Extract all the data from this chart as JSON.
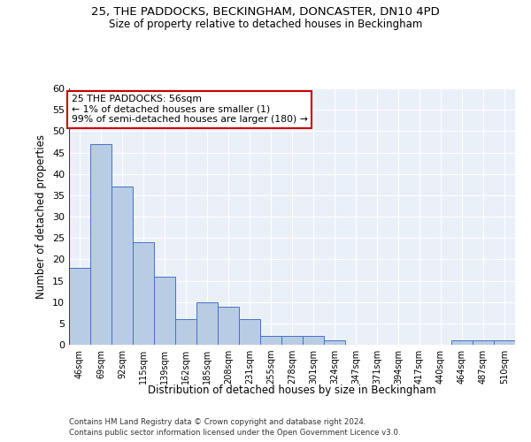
{
  "title_line1": "25, THE PADDOCKS, BECKINGHAM, DONCASTER, DN10 4PD",
  "title_line2": "Size of property relative to detached houses in Beckingham",
  "xlabel": "Distribution of detached houses by size in Beckingham",
  "ylabel": "Number of detached properties",
  "categories": [
    "46sqm",
    "69sqm",
    "92sqm",
    "115sqm",
    "139sqm",
    "162sqm",
    "185sqm",
    "208sqm",
    "231sqm",
    "255sqm",
    "278sqm",
    "301sqm",
    "324sqm",
    "347sqm",
    "371sqm",
    "394sqm",
    "417sqm",
    "440sqm",
    "464sqm",
    "487sqm",
    "510sqm"
  ],
  "values": [
    18,
    47,
    37,
    24,
    16,
    6,
    10,
    9,
    6,
    2,
    2,
    2,
    1,
    0,
    0,
    0,
    0,
    0,
    1,
    1,
    1
  ],
  "bar_color": "#b8cce4",
  "bar_edge_color": "#4472c4",
  "annotation_text_line1": "25 THE PADDOCKS: 56sqm",
  "annotation_text_line2": "← 1% of detached houses are smaller (1)",
  "annotation_text_line3": "99% of semi-detached houses are larger (180) →",
  "annotation_box_color": "#ffffff",
  "annotation_box_edge_color": "#cc0000",
  "subject_line_color": "#cc0000",
  "ylim": [
    0,
    60
  ],
  "yticks": [
    0,
    5,
    10,
    15,
    20,
    25,
    30,
    35,
    40,
    45,
    50,
    55,
    60
  ],
  "background_color": "#eaf0f8",
  "footer_line1": "Contains HM Land Registry data © Crown copyright and database right 2024.",
  "footer_line2": "Contains public sector information licensed under the Open Government Licence v3.0."
}
